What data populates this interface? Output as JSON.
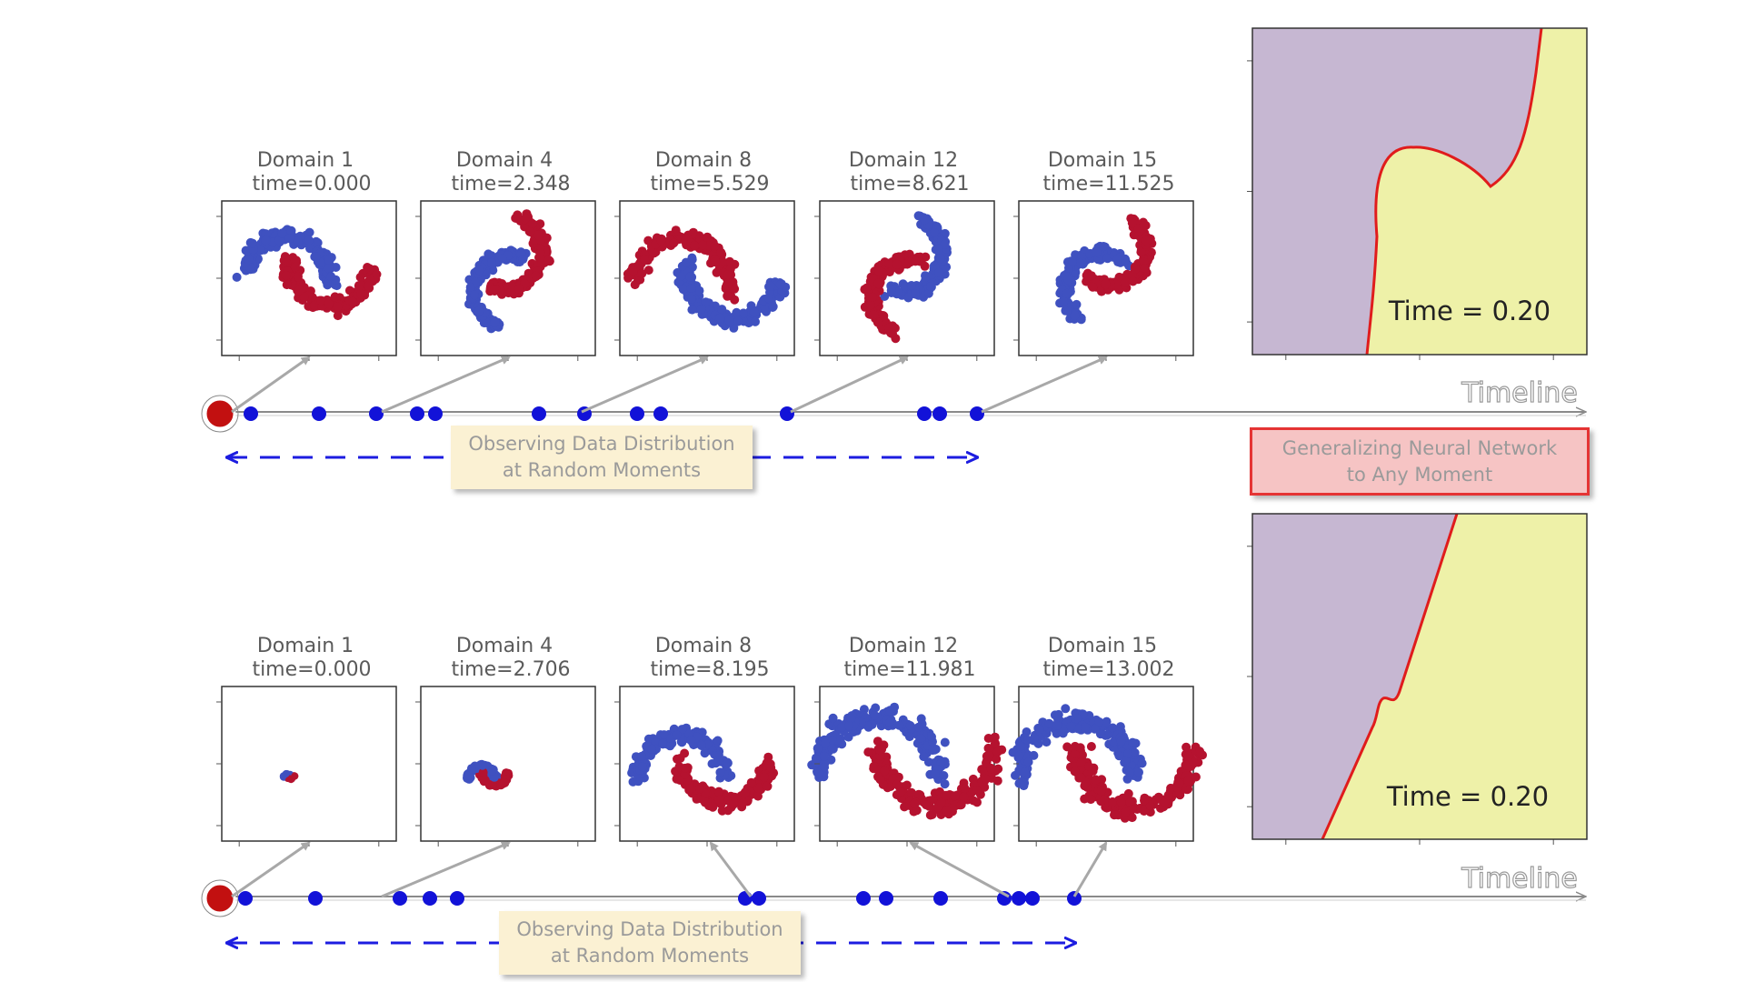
{
  "colors": {
    "blue": "#3f51c0",
    "red": "#b5122f",
    "timeline_dot": "#1212d8",
    "origin": "#c21010",
    "purple_region": "#c6b7d2",
    "yellow_region": "#eef1a8",
    "boundary": "#e01c1c",
    "arrow": "#a8a8a8",
    "dash": "#1c1ce0"
  },
  "timeline_label": "Timeline",
  "callouts": {
    "observe_line1": "Observing Data Distribution",
    "observe_line2": "at Random Moments",
    "general_line1": "Generalizing Neural Network",
    "general_line2": "to Any Moment"
  },
  "rows": [
    {
      "panels": [
        {
          "domain": "Domain 1",
          "time": "time=0.000"
        },
        {
          "domain": "Domain 4",
          "time": "time=2.348"
        },
        {
          "domain": "Domain 8",
          "time": "time=5.529"
        },
        {
          "domain": "Domain 12",
          "time": "time=8.621"
        },
        {
          "domain": "Domain 15",
          "time": "time=11.525"
        }
      ],
      "boundary_time": "Time = 0.20"
    },
    {
      "panels": [
        {
          "domain": "Domain 1",
          "time": "time=0.000"
        },
        {
          "domain": "Domain 4",
          "time": "time=2.706"
        },
        {
          "domain": "Domain 8",
          "time": "time=8.195"
        },
        {
          "domain": "Domain 12",
          "time": "time=11.981"
        },
        {
          "domain": "Domain 15",
          "time": "time=13.002"
        }
      ],
      "boundary_time": "Time = 0.20"
    }
  ]
}
